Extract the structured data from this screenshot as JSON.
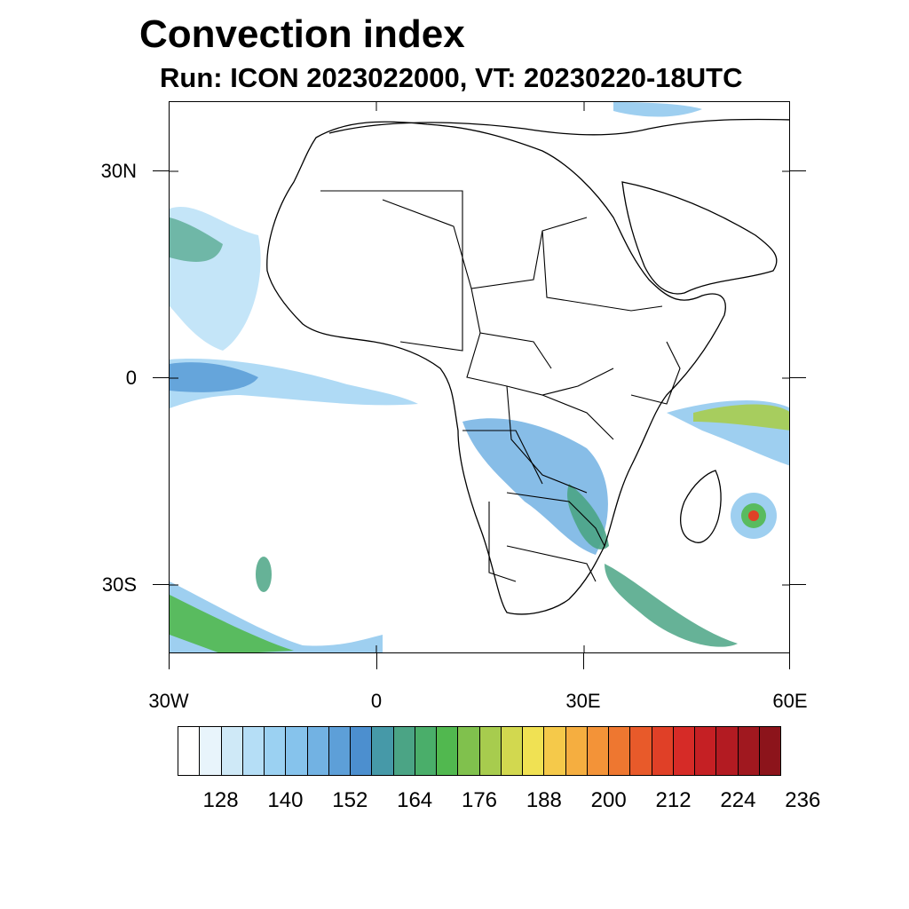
{
  "title": "Convection index",
  "subtitle": "Run: ICON 2023022000,  VT: 20230220-18UTC",
  "map": {
    "lat_labels": [
      "30N",
      "0",
      "30S"
    ],
    "lon_labels": [
      "30W",
      "0",
      "30E",
      "60E"
    ],
    "extent": {
      "lon_min": -30,
      "lon_max": 60,
      "lat_min": -40,
      "lat_max": 40
    }
  },
  "colorbar": {
    "colors": [
      "#ffffff",
      "#e8f4fb",
      "#cfe9f7",
      "#b5def6",
      "#9bd1f2",
      "#86c3ec",
      "#72b2e3",
      "#5d9fd8",
      "#4c8fcf",
      "#4699a8",
      "#4ba485",
      "#4aae6a",
      "#51b84f",
      "#80c14d",
      "#a7cc4e",
      "#d2d84f",
      "#f0e153",
      "#f5c94a",
      "#f5ae40",
      "#f39338",
      "#ee7730",
      "#e85a2a",
      "#e04027",
      "#d62b27",
      "#c52024",
      "#b31b22",
      "#a0181f",
      "#8c141b"
    ],
    "labels": [
      "128",
      "140",
      "152",
      "164",
      "176",
      "188",
      "200",
      "212",
      "224",
      "236"
    ]
  },
  "legend_label_positions": [
    0,
    1,
    2,
    3,
    4,
    5,
    6,
    7,
    8,
    9
  ]
}
